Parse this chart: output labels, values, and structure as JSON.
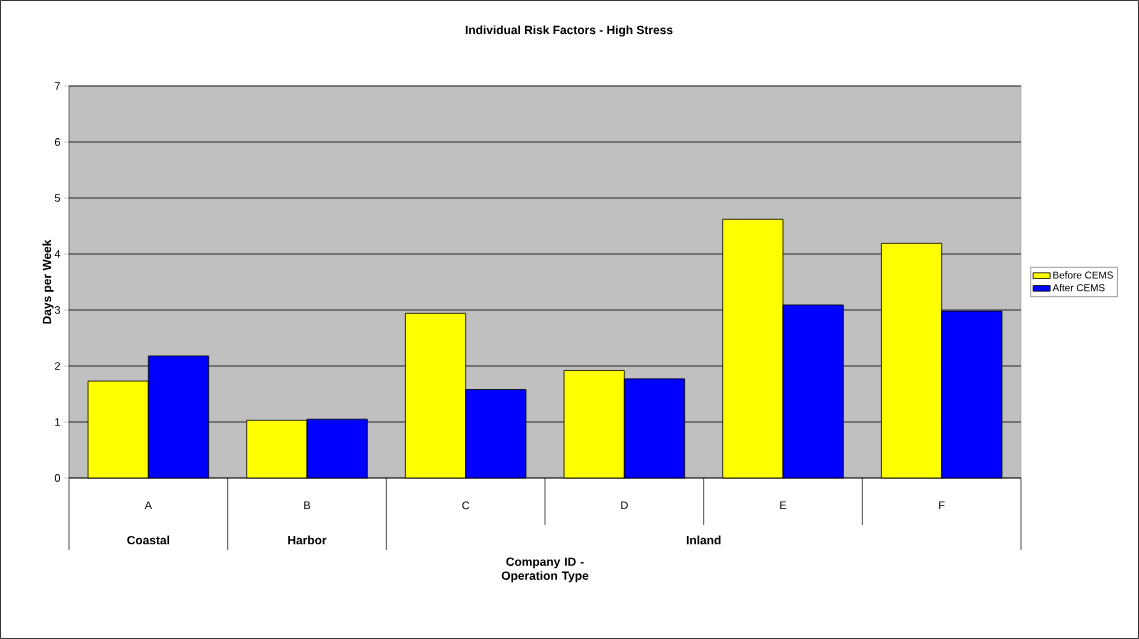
{
  "chart_data": {
    "type": "bar",
    "title": "Individual Risk Factors - High Stress",
    "xlabel": "Company ID - Operation Type",
    "ylabel": "Days per Week",
    "categories": [
      "A",
      "B",
      "C",
      "D",
      "E",
      "F"
    ],
    "series": [
      {
        "name": "Before CEMS",
        "color": "#ffff00",
        "values": [
          1.73,
          1.03,
          2.94,
          1.92,
          4.62,
          4.19
        ]
      },
      {
        "name": "After CEMS",
        "color": "#0000ff",
        "values": [
          2.18,
          1.05,
          1.58,
          1.77,
          3.09,
          2.98
        ]
      }
    ],
    "ylim": [
      0,
      7
    ],
    "yticks": [
      0,
      1,
      2,
      3,
      4,
      5,
      6,
      7
    ],
    "grid": "y",
    "legend": "right",
    "annotations": [
      "Coastal",
      "Harbor",
      "Inland"
    ]
  }
}
